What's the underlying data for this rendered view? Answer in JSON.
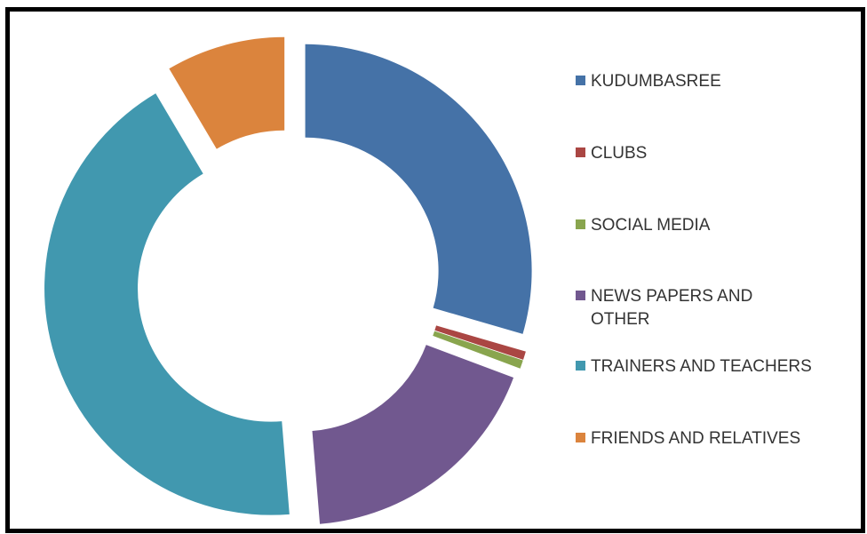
{
  "chart_data": {
    "type": "pie",
    "variant": "donut-exploded",
    "title": "",
    "legend_position": "right",
    "slices": [
      {
        "label": "KUDUMBASREE",
        "value": 29.5,
        "color": "#4572A7"
      },
      {
        "label": "CLUBS",
        "value": 0.6,
        "color": "#AA4643"
      },
      {
        "label": "SOCIAL MEDIA",
        "value": 0.6,
        "color": "#89A54E"
      },
      {
        "label": "NEWS PAPERS AND OTHER",
        "value": 18.0,
        "color": "#71588F"
      },
      {
        "label": "TRAINERS AND TEACHERS",
        "value": 42.8,
        "color": "#4198AF"
      },
      {
        "label": "FRIENDS AND RELATIVES",
        "value": 8.5,
        "color": "#DB843D"
      }
    ]
  }
}
